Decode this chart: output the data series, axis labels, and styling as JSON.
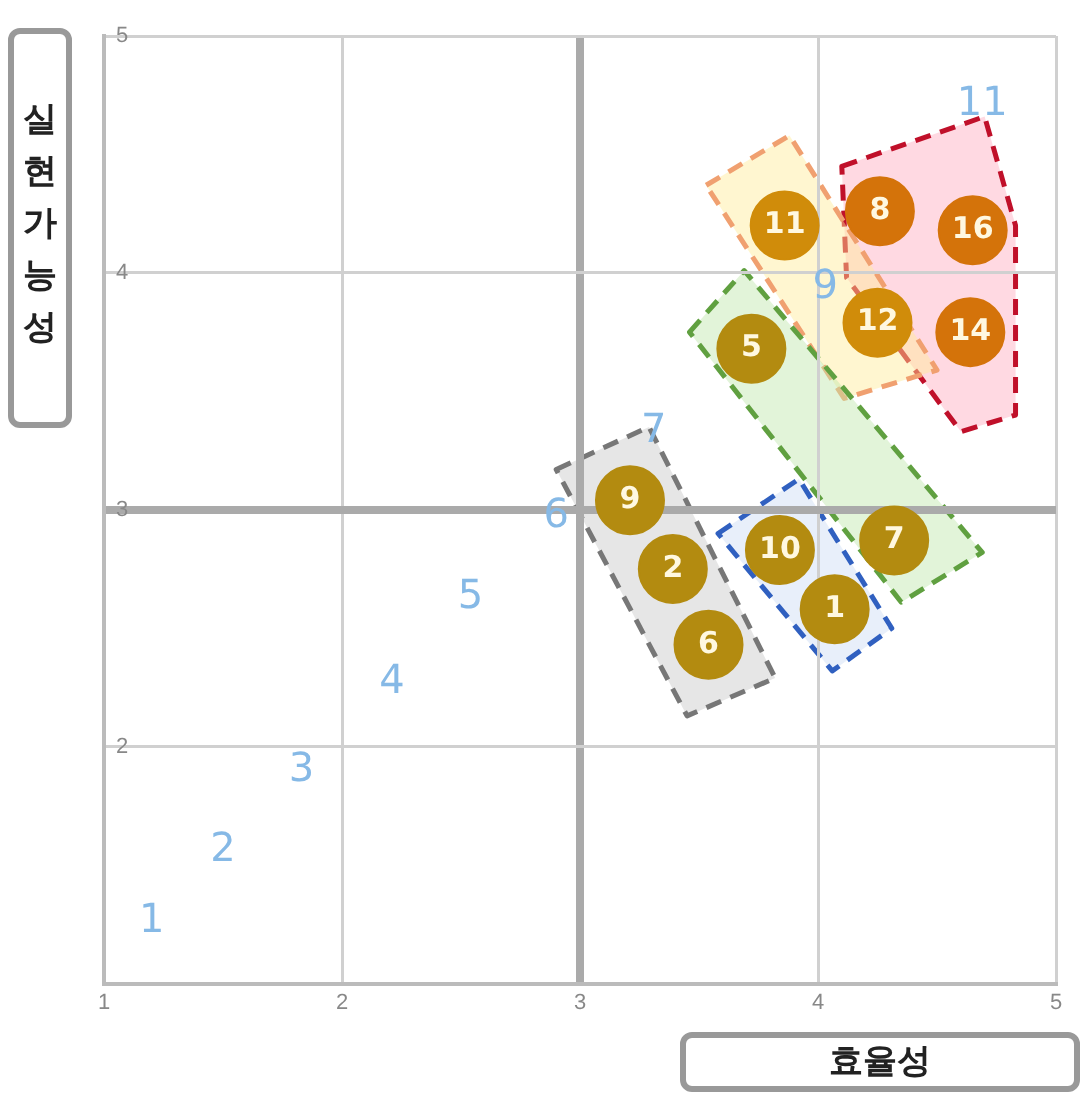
{
  "chart_data": {
    "type": "scatter",
    "xlabel": "효율성",
    "ylabel": "실현가능성",
    "x": [
      3.86,
      4.26,
      4.65,
      4.25,
      4.64,
      3.72,
      3.21,
      3.39,
      3.54,
      3.84,
      4.07,
      4.32
    ],
    "values": [
      4.2,
      4.26,
      4.18,
      3.79,
      3.75,
      3.68,
      3.04,
      2.75,
      2.43,
      2.83,
      2.58,
      2.87
    ],
    "colors": [
      "#d08c0a",
      "#d4730a",
      "#d4730a",
      "#d08c0a",
      "#d4730a",
      "#b38b10",
      "#b38b10",
      "#b38b10",
      "#b38b10",
      "#b38b10",
      "#b38b10",
      "#b38b10"
    ],
    "xlim": [
      1,
      5
    ],
    "ylim": [
      1,
      5
    ],
    "xticks": [
      1,
      2,
      3,
      4,
      5
    ],
    "yticks": [
      2,
      3,
      4,
      5
    ],
    "grid": true,
    "marker": "circle",
    "annotations": [
      {
        "text": "11",
        "x": 3.86,
        "y": 4.2
      },
      {
        "text": "8",
        "x": 4.26,
        "y": 4.26
      },
      {
        "text": "16",
        "x": 4.65,
        "y": 4.18
      },
      {
        "text": "12",
        "x": 4.25,
        "y": 3.79
      },
      {
        "text": "14",
        "x": 4.64,
        "y": 3.75
      },
      {
        "text": "5",
        "x": 3.72,
        "y": 3.68
      },
      {
        "text": "9",
        "x": 3.21,
        "y": 3.04
      },
      {
        "text": "2",
        "x": 3.39,
        "y": 2.75
      },
      {
        "text": "6",
        "x": 3.54,
        "y": 2.43
      },
      {
        "text": "10",
        "x": 3.84,
        "y": 2.83
      },
      {
        "text": "1",
        "x": 4.07,
        "y": 2.58
      },
      {
        "text": "7",
        "x": 4.32,
        "y": 2.87
      },
      "1",
      "2",
      "3",
      "4",
      "5",
      "6",
      "7",
      "9",
      "11"
    ]
  }
}
